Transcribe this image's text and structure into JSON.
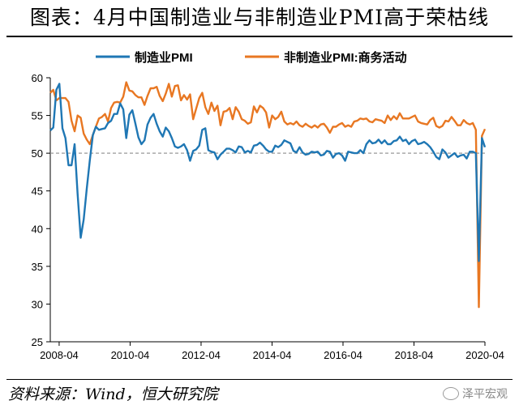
{
  "title": "图表：4月中国制造业与非制造业PMI高于荣枯线",
  "source": "资料来源：Wind，恒大研究院",
  "watermark": "泽平宏观",
  "chart_data": {
    "type": "line",
    "title": "图表：4月中国制造业与非制造业PMI高于荣枯线",
    "xlabel": "",
    "ylabel": "",
    "ylim": [
      25,
      60
    ],
    "yticks": [
      25,
      30,
      35,
      40,
      45,
      50,
      55,
      60
    ],
    "x_start": "2008-01",
    "x_end": "2020-04",
    "xtick_labels": [
      "2008-04",
      "2010-04",
      "2012-04",
      "2014-04",
      "2016-04",
      "2018-04",
      "2020-04"
    ],
    "reference_line": 50,
    "legend_position": "top",
    "series": [
      {
        "name": "制造业PMI",
        "color": "#1f77b4",
        "values": [
          53.0,
          53.4,
          58.4,
          59.2,
          53.3,
          52.0,
          48.4,
          48.4,
          51.2,
          44.6,
          38.8,
          41.2,
          45.3,
          49.0,
          52.4,
          53.5,
          53.1,
          53.2,
          53.3,
          54.0,
          54.3,
          55.2,
          55.2,
          56.6,
          55.8,
          52.0,
          55.1,
          55.7,
          53.9,
          52.1,
          51.2,
          51.7,
          53.8,
          54.7,
          55.2,
          53.9,
          52.9,
          52.2,
          53.4,
          52.9,
          52.0,
          50.9,
          50.7,
          50.9,
          51.2,
          50.4,
          49.0,
          50.3,
          50.5,
          51.0,
          53.1,
          53.3,
          50.4,
          50.2,
          50.1,
          49.2,
          49.8,
          50.2,
          50.6,
          50.6,
          50.4,
          50.1,
          50.9,
          50.8,
          50.1,
          50.3,
          50.1,
          51.0,
          51.1,
          51.4,
          51.0,
          50.5,
          50.2,
          50.2,
          51.0,
          50.8,
          51.1,
          51.7,
          51.5,
          51.3,
          50.3,
          50.1,
          50.8,
          50.1,
          49.8,
          49.9,
          50.2,
          50.1,
          50.2,
          49.7,
          49.8,
          50.3,
          50.2,
          49.4,
          49.9,
          50.0,
          49.7,
          49.0,
          50.2,
          50.1,
          50.0,
          50.0,
          50.4,
          50.0,
          51.2,
          51.7,
          51.3,
          51.4,
          51.8,
          51.3,
          51.7,
          51.2,
          51.2,
          51.6,
          51.7,
          52.2,
          51.6,
          51.8,
          51.2,
          51.6,
          51.8,
          51.2,
          51.3,
          51.5,
          51.2,
          50.8,
          50.2,
          49.5,
          49.2,
          50.5,
          50.1,
          49.4,
          49.7,
          50.0,
          49.5,
          49.7,
          49.8,
          49.3,
          50.2,
          50.2,
          50.0,
          35.7,
          52.0,
          50.8
        ]
      },
      {
        "name": "非制造业PMI:商务活动",
        "color": "#e87722",
        "values": [
          58.0,
          58.4,
          57.0,
          57.3,
          57.3,
          57.3,
          56.8,
          54.3,
          52.9,
          55.0,
          54.7,
          52.6,
          51.8,
          51.2,
          52.4,
          53.5,
          54.6,
          54.8,
          55.2,
          54.2,
          56.0,
          56.7,
          56.8,
          56.7,
          57.5,
          59.4,
          58.3,
          58.2,
          57.7,
          57.4,
          57.4,
          56.4,
          57.6,
          58.6,
          58.6,
          58.8,
          57.6,
          56.9,
          57.9,
          59.2,
          57.5,
          58.9,
          59.0,
          57.0,
          57.7,
          57.1,
          57.8,
          54.5,
          55.9,
          57.3,
          58.0,
          56.1,
          55.2,
          56.7,
          55.6,
          56.3,
          53.7,
          55.5,
          55.6,
          56.0,
          54.5,
          56.1,
          55.5,
          54.5,
          54.3,
          53.9,
          54.1,
          56.2,
          55.4,
          56.3,
          56.0,
          55.4,
          53.4,
          55.0,
          54.5,
          54.8,
          55.5,
          54.2,
          53.8,
          54.0,
          53.8,
          54.2,
          53.7,
          53.5,
          53.9,
          53.6,
          53.4,
          53.7,
          53.4,
          53.8,
          53.9,
          53.4,
          52.7,
          53.5,
          53.5,
          53.8,
          54.0,
          53.5,
          53.7,
          53.5,
          54.2,
          54.3,
          54.6,
          54.5,
          54.6,
          54.2,
          54.1,
          54.5,
          54.4,
          54.3,
          54.0,
          55.0,
          54.4,
          54.9,
          54.5,
          55.3,
          54.6,
          54.6,
          54.6,
          54.8,
          55.0,
          54.2,
          54.0,
          53.9,
          53.8,
          54.4,
          54.7,
          53.6,
          53.4,
          53.6,
          54.3,
          54.2,
          54.8,
          54.3,
          53.7,
          53.7,
          54.4,
          54.0,
          53.8,
          54.0,
          53.1,
          29.6,
          52.3,
          53.2
        ]
      }
    ]
  }
}
